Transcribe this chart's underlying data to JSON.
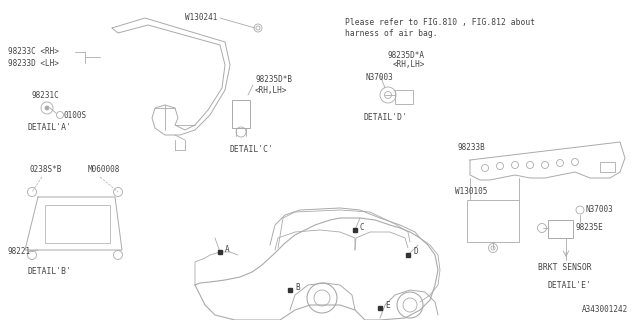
{
  "bg_color": "#ffffff",
  "line_color": "#aaaaaa",
  "text_color": "#444444",
  "title_note_line1": "Please refer to FIG.810 , FIG.812 about",
  "title_note_line2": "harness of air bag.",
  "diagram_id": "A343001242",
  "font_size": 5.5,
  "font_size_detail": 5.8,
  "font_size_note": 5.8
}
